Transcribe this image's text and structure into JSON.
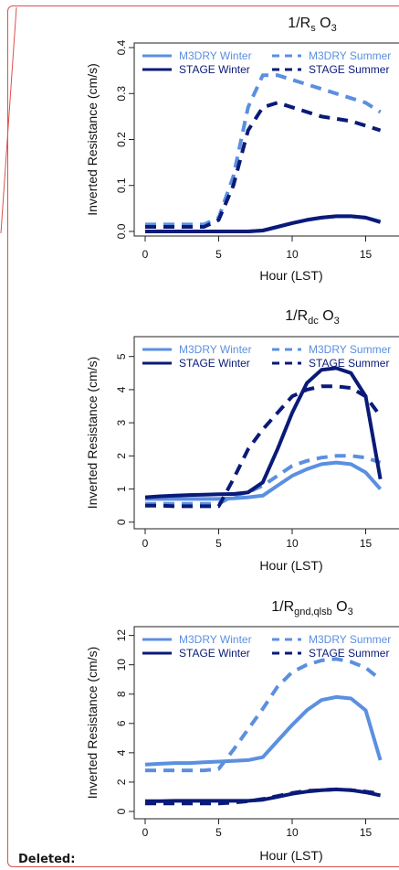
{
  "deleted_label": "Deleted:",
  "colors": {
    "winter_m3dry": "#5b8fe0",
    "summer_m3dry": "#5b8fe0",
    "winter_stage": "#0a1a78",
    "summer_stage": "#0a1a78",
    "frame": "#d9534f"
  },
  "chart_data": [
    {
      "type": "line",
      "title_parts": [
        "1/R",
        "s",
        " O",
        "3"
      ],
      "xlabel": "Hour (LST)",
      "ylabel": "Inverted Resistance (cm/s)",
      "xlim": [
        -1,
        16
      ],
      "ylim": [
        -0.01,
        0.41
      ],
      "xticks": [
        0,
        5,
        10,
        15
      ],
      "yticks": [
        0.0,
        0.1,
        0.2,
        0.3,
        0.4
      ],
      "ytick_labels": [
        "0.0",
        "0.1",
        "0.2",
        "0.3",
        "0.4"
      ],
      "legend": [
        {
          "name": "M3DRY Winter",
          "style": "solid-light"
        },
        {
          "name": "M3DRY Summer",
          "style": "dashed-light"
        },
        {
          "name": "STAGE Winter",
          "style": "solid-dark"
        },
        {
          "name": "STAGE Summer",
          "style": "dashed-dark"
        }
      ],
      "series": [
        {
          "name": "M3DRY Winter",
          "style": "solid-light",
          "x": [
            0,
            1,
            2,
            3,
            4,
            5,
            6,
            7,
            8,
            9,
            10,
            11,
            12,
            13,
            14,
            15,
            16
          ],
          "values": [
            0,
            0,
            0,
            0,
            0,
            0,
            0,
            0,
            0.002,
            0.01,
            0.018,
            0.025,
            0.03,
            0.033,
            0.033,
            0.03,
            0.022
          ]
        },
        {
          "name": "M3DRY Summer",
          "style": "dashed-light",
          "x": [
            0,
            1,
            2,
            3,
            4,
            5,
            6,
            7,
            8,
            9,
            10,
            11,
            12,
            13,
            14,
            15,
            16
          ],
          "values": [
            0.015,
            0.015,
            0.015,
            0.015,
            0.015,
            0.03,
            0.12,
            0.27,
            0.34,
            0.34,
            0.33,
            0.32,
            0.31,
            0.3,
            0.29,
            0.28,
            0.26
          ]
        },
        {
          "name": "STAGE Winter",
          "style": "solid-dark",
          "x": [
            0,
            1,
            2,
            3,
            4,
            5,
            6,
            7,
            8,
            9,
            10,
            11,
            12,
            13,
            14,
            15,
            16
          ],
          "values": [
            0,
            0,
            0,
            0,
            0,
            0,
            0,
            0,
            0.002,
            0.01,
            0.018,
            0.025,
            0.03,
            0.033,
            0.033,
            0.03,
            0.02
          ]
        },
        {
          "name": "STAGE Summer",
          "style": "dashed-dark",
          "x": [
            0,
            1,
            2,
            3,
            4,
            5,
            6,
            7,
            8,
            9,
            10,
            11,
            12,
            13,
            14,
            15,
            16
          ],
          "values": [
            0.01,
            0.01,
            0.01,
            0.01,
            0.01,
            0.025,
            0.1,
            0.22,
            0.27,
            0.28,
            0.27,
            0.26,
            0.25,
            0.245,
            0.24,
            0.23,
            0.22
          ]
        }
      ]
    },
    {
      "type": "line",
      "title_parts": [
        "1/R",
        "dc",
        " O",
        "3"
      ],
      "xlabel": "Hour (LST)",
      "ylabel": "Inverted Resistance (cm/s)",
      "xlim": [
        -1,
        16
      ],
      "ylim": [
        -0.2,
        5.6
      ],
      "xticks": [
        0,
        5,
        10,
        15
      ],
      "yticks": [
        0,
        1,
        2,
        3,
        4,
        5
      ],
      "ytick_labels": [
        "0",
        "1",
        "2",
        "3",
        "4",
        "5"
      ],
      "legend": [
        {
          "name": "M3DRY Winter",
          "style": "solid-light"
        },
        {
          "name": "M3DRY Summer",
          "style": "dashed-light"
        },
        {
          "name": "STAGE Winter",
          "style": "solid-dark"
        },
        {
          "name": "STAGE Summer",
          "style": "dashed-dark"
        }
      ],
      "series": [
        {
          "name": "M3DRY Winter",
          "style": "solid-light",
          "x": [
            0,
            1,
            2,
            3,
            4,
            5,
            6,
            7,
            8,
            9,
            10,
            11,
            12,
            13,
            14,
            15,
            16
          ],
          "values": [
            0.7,
            0.7,
            0.7,
            0.7,
            0.7,
            0.7,
            0.72,
            0.75,
            0.8,
            1.1,
            1.4,
            1.6,
            1.75,
            1.8,
            1.75,
            1.5,
            1.0
          ]
        },
        {
          "name": "M3DRY Summer",
          "style": "dashed-light",
          "x": [
            0,
            1,
            2,
            3,
            4,
            5,
            6,
            7,
            8,
            9,
            10,
            11,
            12,
            13,
            14,
            15,
            16
          ],
          "values": [
            0.55,
            0.55,
            0.55,
            0.55,
            0.55,
            0.55,
            0.8,
            0.9,
            1.1,
            1.4,
            1.7,
            1.85,
            1.95,
            2.0,
            2.0,
            1.95,
            1.8
          ]
        },
        {
          "name": "STAGE Winter",
          "style": "solid-dark",
          "x": [
            0,
            1,
            2,
            3,
            4,
            5,
            6,
            7,
            8,
            9,
            10,
            11,
            12,
            13,
            14,
            15,
            16
          ],
          "values": [
            0.75,
            0.78,
            0.8,
            0.82,
            0.83,
            0.84,
            0.85,
            0.9,
            1.2,
            2.2,
            3.3,
            4.2,
            4.6,
            4.65,
            4.5,
            3.8,
            1.3
          ]
        },
        {
          "name": "STAGE Summer",
          "style": "dashed-dark",
          "x": [
            0,
            1,
            2,
            3,
            4,
            5,
            6,
            7,
            8,
            9,
            10,
            11,
            12,
            13,
            14,
            15,
            16
          ],
          "values": [
            0.5,
            0.5,
            0.48,
            0.48,
            0.48,
            0.48,
            1.3,
            2.2,
            2.8,
            3.3,
            3.8,
            4.0,
            4.1,
            4.1,
            4.05,
            3.8,
            3.2
          ]
        }
      ]
    },
    {
      "type": "line",
      "title_parts": [
        "1/R",
        "gnd,qlsb",
        " O",
        "3"
      ],
      "xlabel": "Hour (LST)",
      "ylabel": "Inverted Resistance (cm/s)",
      "xlim": [
        -1,
        16
      ],
      "ylim": [
        -0.5,
        12.6
      ],
      "xticks": [
        0,
        5,
        10,
        15
      ],
      "yticks": [
        0,
        2,
        4,
        6,
        8,
        10,
        12
      ],
      "ytick_labels": [
        "0",
        "2",
        "4",
        "6",
        "8",
        "10",
        "12"
      ],
      "legend": [
        {
          "name": "M3DRY Winter",
          "style": "solid-light"
        },
        {
          "name": "M3DRY Summer",
          "style": "dashed-light"
        },
        {
          "name": "STAGE Winter",
          "style": "solid-dark"
        },
        {
          "name": "STAGE Summer",
          "style": "dashed-dark"
        }
      ],
      "series": [
        {
          "name": "M3DRY Winter",
          "style": "solid-light",
          "x": [
            0,
            1,
            2,
            3,
            4,
            5,
            6,
            7,
            8,
            9,
            10,
            11,
            12,
            13,
            14,
            15,
            16
          ],
          "values": [
            3.2,
            3.25,
            3.3,
            3.3,
            3.35,
            3.4,
            3.45,
            3.5,
            3.7,
            4.8,
            5.9,
            6.9,
            7.6,
            7.8,
            7.7,
            6.9,
            3.5
          ]
        },
        {
          "name": "M3DRY Summer",
          "style": "dashed-light",
          "x": [
            0,
            1,
            2,
            3,
            4,
            5,
            6,
            7,
            8,
            9,
            10,
            11,
            12,
            13,
            14,
            15,
            16
          ],
          "values": [
            2.8,
            2.8,
            2.8,
            2.8,
            2.8,
            2.9,
            4.2,
            5.6,
            7.0,
            8.5,
            9.5,
            10.0,
            10.3,
            10.4,
            10.2,
            9.8,
            9.0
          ]
        },
        {
          "name": "STAGE Winter",
          "style": "solid-dark",
          "x": [
            0,
            1,
            2,
            3,
            4,
            5,
            6,
            7,
            8,
            9,
            10,
            11,
            12,
            13,
            14,
            15,
            16
          ],
          "values": [
            0.7,
            0.7,
            0.72,
            0.72,
            0.72,
            0.72,
            0.72,
            0.72,
            0.8,
            1.0,
            1.2,
            1.35,
            1.45,
            1.5,
            1.45,
            1.3,
            1.1
          ]
        },
        {
          "name": "STAGE Summer",
          "style": "dashed-dark",
          "x": [
            0,
            1,
            2,
            3,
            4,
            5,
            6,
            7,
            8,
            9,
            10,
            11,
            12,
            13,
            14,
            15,
            16
          ],
          "values": [
            0.55,
            0.55,
            0.55,
            0.55,
            0.55,
            0.55,
            0.6,
            0.7,
            0.85,
            1.05,
            1.25,
            1.4,
            1.45,
            1.5,
            1.45,
            1.35,
            1.2
          ]
        }
      ]
    }
  ]
}
